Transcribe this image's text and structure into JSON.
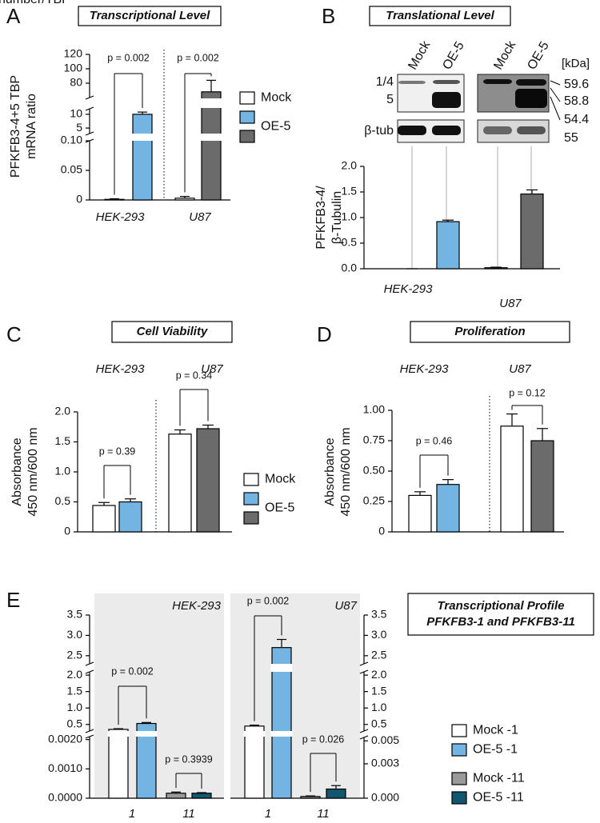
{
  "chart_data": [
    {
      "type": "bar",
      "panel_label": "A",
      "title": "Transcriptional Level",
      "ylabel": [
        "PFKFB3-4+5 TBP",
        "mRNA ratio"
      ],
      "groups": [
        "HEK-293",
        "U87"
      ],
      "axis_segments": [
        {
          "ylim": [
            0,
            0.1
          ],
          "yticks": [
            0,
            0.05,
            {
              "value": 0.1,
              "label": "0.10"
            }
          ]
        },
        {
          "ylim": [
            3,
            12
          ],
          "yticks": [
            5,
            10
          ]
        },
        {
          "ylim": [
            60,
            120
          ],
          "yticks": [
            80,
            100,
            120
          ]
        }
      ],
      "series": [
        {
          "name": "Mock",
          "color": "#ffffff",
          "values": [
            0.001,
            0.003
          ],
          "errors": [
            0.001,
            0.003
          ]
        },
        {
          "name": "OE-5",
          "colors": [
            "#74b4e2",
            "#6b6b6b"
          ],
          "values": [
            10,
            68
          ],
          "errors": [
            0.8,
            16
          ]
        }
      ],
      "p_values": [
        "p = 0.002",
        "p = 0.002"
      ]
    },
    {
      "type": "bar",
      "panel_label": "B",
      "title": "Translational Level",
      "blot": {
        "lanes": [
          "Mock",
          "OE-5",
          "Mock",
          "OE-5"
        ],
        "unit": "[kDa]",
        "bands": [
          "1/4",
          "5",
          "β-tub"
        ],
        "sizes": [
          59.6,
          58.8,
          54.4,
          55
        ]
      },
      "ylabel": [
        "PFKFB3-4/",
        "β-Tubulin"
      ],
      "groups": [
        "HEK-293",
        "U87"
      ],
      "ylim": [
        0,
        2
      ],
      "yticks": [
        {
          "value": 0,
          "label": "0.0"
        },
        0.5,
        {
          "value": 1,
          "label": "1.0"
        },
        1.5,
        {
          "value": 2,
          "label": "2.0"
        }
      ],
      "series": [
        {
          "color": "#ffffff",
          "values": [
            0,
            0.02
          ],
          "errors": [
            0,
            0.01
          ]
        },
        {
          "colors": [
            "#74b4e2",
            "#6b6b6b"
          ],
          "values": [
            0.92,
            1.46
          ],
          "errors": [
            0.03,
            0.08
          ]
        }
      ]
    },
    {
      "type": "bar",
      "panel_label": "C",
      "title": "Cell Viability",
      "ylabel": [
        "Absorbance",
        "450 nm/600 nm"
      ],
      "groups": [
        "HEK-293",
        "U87"
      ],
      "ylim": [
        0,
        2
      ],
      "yticks": [
        0,
        0.5,
        {
          "value": 1,
          "label": "1.0"
        },
        1.5,
        {
          "value": 2,
          "label": "2.0"
        }
      ],
      "series": [
        {
          "name": "Mock",
          "color": "#ffffff",
          "values": [
            0.44,
            1.63
          ],
          "errors": [
            0.05,
            0.07
          ]
        },
        {
          "name": "OE-5",
          "colors": [
            "#74b4e2",
            "#6b6b6b"
          ],
          "values": [
            0.5,
            1.72
          ],
          "errors": [
            0.05,
            0.06
          ]
        }
      ],
      "p_values": [
        "p = 0.39",
        "p = 0.34"
      ]
    },
    {
      "type": "bar",
      "panel_label": "D",
      "title": "Proliferation",
      "ylabel": [
        "Absorbance",
        "450 nm/600 nm"
      ],
      "groups": [
        "HEK-293",
        "U87"
      ],
      "ylim": [
        0,
        1
      ],
      "yticks": [
        0,
        0.25,
        {
          "value": 0.5,
          "label": "0.50"
        },
        0.75,
        {
          "value": 1,
          "label": "1.00"
        }
      ],
      "series": [
        {
          "color": "#ffffff",
          "values": [
            0.3,
            0.87
          ],
          "errors": [
            0.03,
            0.1
          ]
        },
        {
          "colors": [
            "#74b4e2",
            "#6b6b6b"
          ],
          "values": [
            0.39,
            0.75
          ],
          "errors": [
            0.04,
            0.1
          ]
        }
      ],
      "p_values": [
        "p = 0.46",
        "p = 0.12"
      ]
    },
    {
      "type": "bar",
      "panel_label": "E",
      "title": [
        "Transcriptional Profile",
        "PFKFB3-1 and PFKFB3-11"
      ],
      "ylabel": "Copy number/TBP",
      "categories": [
        "1",
        "11"
      ],
      "panels": [
        {
          "name": "HEK-293",
          "axis_segments": [
            {
              "ylim": [
                0,
                0.0021
              ],
              "yticks": [
                {
                  "value": 0,
                  "label": "0.0000"
                },
                {
                  "value": 0.001,
                  "label": "0.0010"
                },
                {
                  "value": 0.002,
                  "label": "0.0020"
                }
              ]
            },
            {
              "ylim": [
                0.3,
                2.1
              ],
              "yticks": [
                0.5,
                {
                  "value": 1,
                  "label": "1.0"
                },
                1.5,
                {
                  "value": 2,
                  "label": "2.0"
                }
              ]
            },
            {
              "ylim": [
                2.3,
                3.5
              ],
              "yticks": [
                2.5,
                {
                  "value": 3,
                  "label": "3.0"
                },
                3.5
              ]
            }
          ],
          "p_values": [
            "p = 0.002",
            "p = 0.3939"
          ]
        },
        {
          "name": "U87",
          "axis_segments": [
            {
              "ylim": [
                0,
                0.0053
              ],
              "yticks": [
                {
                  "value": 0,
                  "label": "0.000"
                },
                0.003,
                0.005
              ]
            },
            {
              "ylim": [
                0.3,
                2.1
              ],
              "yticks": [
                0.5,
                {
                  "value": 1,
                  "label": "1.0"
                },
                1.5,
                {
                  "value": 2,
                  "label": "2.0"
                }
              ]
            },
            {
              "ylim": [
                2.3,
                3.5
              ],
              "yticks": [
                2.5,
                {
                  "value": 3,
                  "label": "3.0"
                },
                3.5
              ]
            }
          ],
          "p_values": [
            "p = 0.002",
            "p = 0.026"
          ]
        }
      ],
      "series": [
        {
          "name": "Mock -1",
          "color": "#ffffff",
          "values": [
            0.35,
            0.45
          ],
          "errors": [
            0.02,
            0.03
          ]
        },
        {
          "name": "OE-5 -1",
          "color": "#74b4e2",
          "values": [
            0.53,
            2.7
          ],
          "errors": [
            0.03,
            0.2
          ]
        },
        {
          "name": "Mock -11",
          "color": "#9a9a9a",
          "values": [
            0.00017,
            0.00015
          ],
          "errors": [
            4e-05,
            5e-05
          ]
        },
        {
          "name": "OE-5 -11",
          "color": "#12566f",
          "values": [
            0.00017,
            0.0008
          ],
          "errors": [
            2e-05,
            0.0003
          ]
        }
      ]
    }
  ]
}
